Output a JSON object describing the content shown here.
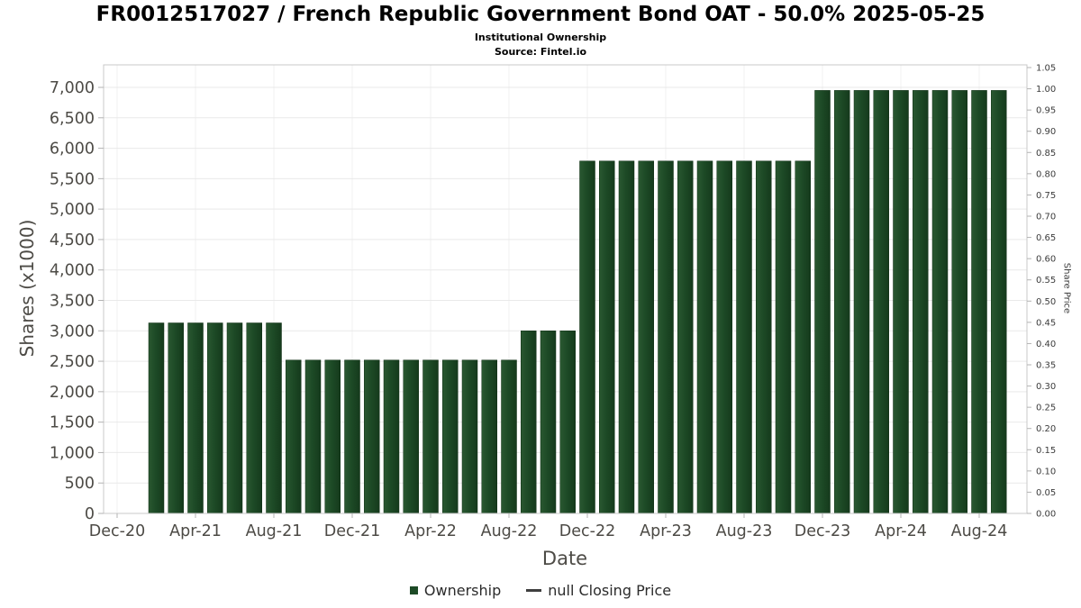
{
  "chart_data": {
    "type": "bar",
    "title": "FR0012517027 / French Republic Government Bond OAT - 50.0% 2025-05-25",
    "subtitle": "Institutional Ownership",
    "source": "Source: Fintel.io",
    "xlabel": "Date",
    "ylabel_left": "Shares (x1000)",
    "ylabel_right": "Share Price",
    "bar_color": "#1d4a26",
    "grid": true,
    "legend_position": "bottom-center",
    "left_axis": {
      "min": 0,
      "max": 7000,
      "step": 500
    },
    "right_axis": {
      "min": 0,
      "max": 1.05,
      "step": 0.05
    },
    "x_tick_labels": [
      "Dec-20",
      "Apr-21",
      "Aug-21",
      "Dec-21",
      "Apr-22",
      "Aug-22",
      "Dec-22",
      "Apr-23",
      "Aug-23",
      "Dec-23",
      "Apr-24",
      "Aug-24"
    ],
    "x_tick_month_index": [
      0,
      4,
      8,
      12,
      16,
      20,
      24,
      28,
      32,
      36,
      40,
      44
    ],
    "legend": [
      {
        "label": "Ownership",
        "type": "square"
      },
      {
        "label": "null Closing Price",
        "type": "line"
      }
    ],
    "series_name": "Ownership",
    "bars": [
      {
        "month": "Feb-21",
        "index": 2,
        "value": 3130
      },
      {
        "month": "Mar-21",
        "index": 3,
        "value": 3130
      },
      {
        "month": "Apr-21",
        "index": 4,
        "value": 3130
      },
      {
        "month": "May-21",
        "index": 5,
        "value": 3130
      },
      {
        "month": "Jun-21",
        "index": 6,
        "value": 3130
      },
      {
        "month": "Jul-21",
        "index": 7,
        "value": 3130
      },
      {
        "month": "Aug-21",
        "index": 8,
        "value": 3130
      },
      {
        "month": "Sep-21",
        "index": 9,
        "value": 2520
      },
      {
        "month": "Oct-21",
        "index": 10,
        "value": 2520
      },
      {
        "month": "Nov-21",
        "index": 11,
        "value": 2520
      },
      {
        "month": "Dec-21",
        "index": 12,
        "value": 2520
      },
      {
        "month": "Jan-22",
        "index": 13,
        "value": 2520
      },
      {
        "month": "Feb-22",
        "index": 14,
        "value": 2520
      },
      {
        "month": "Mar-22",
        "index": 15,
        "value": 2520
      },
      {
        "month": "Apr-22",
        "index": 16,
        "value": 2520
      },
      {
        "month": "May-22",
        "index": 17,
        "value": 2520
      },
      {
        "month": "Jun-22",
        "index": 18,
        "value": 2520
      },
      {
        "month": "Jul-22",
        "index": 19,
        "value": 2520
      },
      {
        "month": "Aug-22",
        "index": 20,
        "value": 2520
      },
      {
        "month": "Sep-22",
        "index": 21,
        "value": 3000
      },
      {
        "month": "Oct-22",
        "index": 22,
        "value": 3000
      },
      {
        "month": "Nov-22",
        "index": 23,
        "value": 3000
      },
      {
        "month": "Dec-22",
        "index": 24,
        "value": 5790
      },
      {
        "month": "Jan-23",
        "index": 25,
        "value": 5790
      },
      {
        "month": "Feb-23",
        "index": 26,
        "value": 5790
      },
      {
        "month": "Mar-23",
        "index": 27,
        "value": 5790
      },
      {
        "month": "Apr-23",
        "index": 28,
        "value": 5790
      },
      {
        "month": "May-23",
        "index": 29,
        "value": 5790
      },
      {
        "month": "Jun-23",
        "index": 30,
        "value": 5790
      },
      {
        "month": "Jul-23",
        "index": 31,
        "value": 5790
      },
      {
        "month": "Aug-23",
        "index": 32,
        "value": 5790
      },
      {
        "month": "Sep-23",
        "index": 33,
        "value": 5790
      },
      {
        "month": "Oct-23",
        "index": 34,
        "value": 5790
      },
      {
        "month": "Nov-23",
        "index": 35,
        "value": 5790
      },
      {
        "month": "Dec-23",
        "index": 36,
        "value": 6950
      },
      {
        "month": "Jan-24",
        "index": 37,
        "value": 6950
      },
      {
        "month": "Feb-24",
        "index": 38,
        "value": 6950
      },
      {
        "month": "Mar-24",
        "index": 39,
        "value": 6950
      },
      {
        "month": "Apr-24",
        "index": 40,
        "value": 6950
      },
      {
        "month": "May-24",
        "index": 41,
        "value": 6950
      },
      {
        "month": "Jun-24",
        "index": 42,
        "value": 6950
      },
      {
        "month": "Jul-24",
        "index": 43,
        "value": 6950
      },
      {
        "month": "Aug-24",
        "index": 44,
        "value": 6950
      },
      {
        "month": "Sep-24",
        "index": 45,
        "value": 6950
      }
    ]
  }
}
